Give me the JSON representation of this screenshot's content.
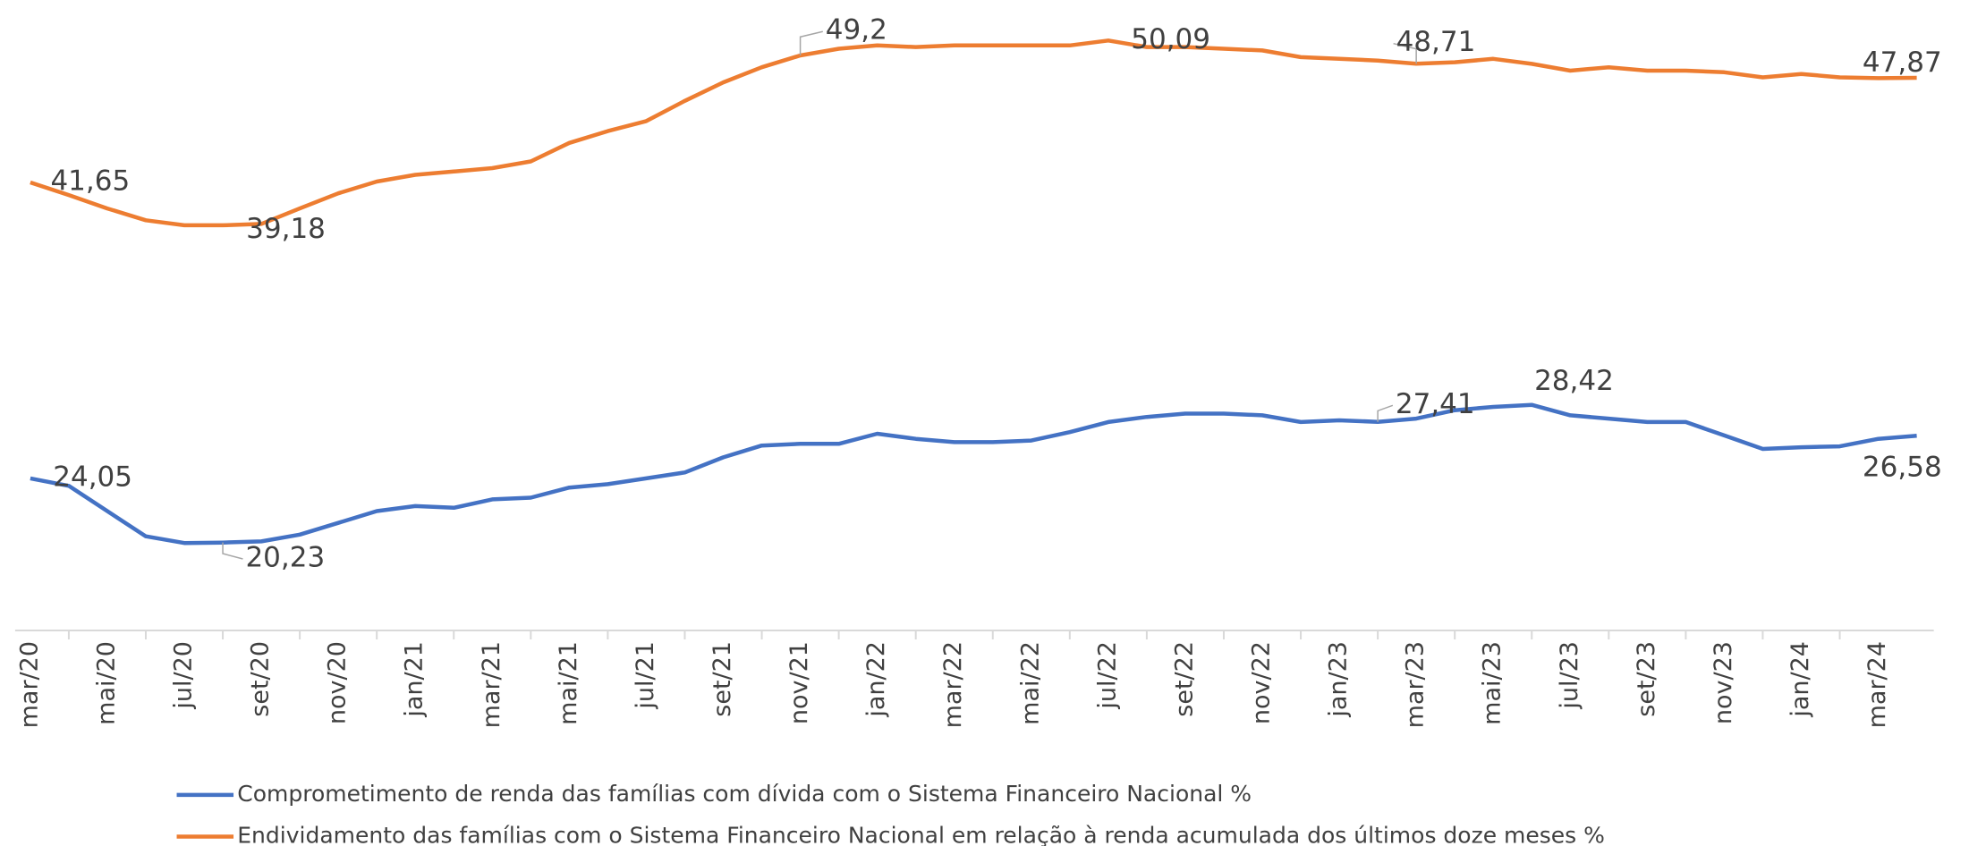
{
  "chart_data": {
    "type": "line",
    "categories": [
      "mar/20",
      null,
      "mai/20",
      null,
      "jul/20",
      null,
      "set/20",
      null,
      "nov/20",
      null,
      "jan/21",
      null,
      "mar/21",
      null,
      "mai/21",
      null,
      "jul/21",
      null,
      "set/21",
      null,
      "nov/21",
      null,
      "jan/22",
      null,
      "mar/22",
      null,
      "mai/22",
      null,
      "jul/22",
      null,
      "set/22",
      null,
      "nov/22",
      null,
      "jan/23",
      null,
      "mar/23",
      null,
      "mai/23",
      null,
      "jul/23",
      null,
      "set/23",
      null,
      "nov/23",
      null,
      "jan/24",
      null,
      "mar/24",
      null
    ],
    "series": [
      {
        "name": "Comprometimento de renda das famílias com dívida com o Sistema Financeiro Nacional  %",
        "color": "#4472c4",
        "values": [
          24.05,
          23.6,
          22.1,
          20.6,
          20.2,
          20.23,
          20.3,
          20.7,
          21.4,
          22.1,
          22.4,
          22.3,
          22.8,
          22.9,
          23.5,
          23.7,
          24.05,
          24.4,
          25.3,
          26.0,
          26.1,
          26.1,
          26.7,
          26.4,
          26.2,
          26.2,
          26.3,
          26.8,
          27.4,
          27.7,
          27.9,
          27.9,
          27.8,
          27.4,
          27.5,
          27.41,
          27.6,
          28.1,
          28.3,
          28.42,
          27.8,
          27.6,
          27.4,
          27.4,
          26.6,
          25.8,
          25.9,
          25.95,
          26.4,
          26.58
        ],
        "value_labels": [
          "24,05",
          null,
          null,
          null,
          null,
          "20,23",
          null,
          null,
          null,
          null,
          null,
          null,
          null,
          null,
          null,
          null,
          null,
          null,
          null,
          null,
          null,
          null,
          null,
          null,
          null,
          null,
          null,
          null,
          null,
          null,
          null,
          null,
          null,
          null,
          null,
          "27,41",
          null,
          null,
          null,
          "28,42",
          null,
          null,
          null,
          null,
          null,
          null,
          null,
          null,
          null,
          "26,58"
        ]
      },
      {
        "name": "Endividamento das famílias com o Sistema Financeiro Nacional em relação à renda acumulada dos últimos doze meses %",
        "color": "#ed7d31",
        "values": [
          41.65,
          40.9,
          40.1,
          39.4,
          39.1,
          39.1,
          39.18,
          40.1,
          41.0,
          41.7,
          42.1,
          42.3,
          42.5,
          42.9,
          44.0,
          44.7,
          45.3,
          46.5,
          47.6,
          48.5,
          49.2,
          49.6,
          49.8,
          49.7,
          49.8,
          49.8,
          49.8,
          49.8,
          50.09,
          49.7,
          49.7,
          49.6,
          49.5,
          49.1,
          49.0,
          48.9,
          48.71,
          48.8,
          49.0,
          48.7,
          48.3,
          48.5,
          48.3,
          48.3,
          48.2,
          47.9,
          48.1,
          47.9,
          47.85,
          47.87
        ],
        "value_labels": [
          "41,65",
          null,
          null,
          null,
          null,
          null,
          "39,18",
          null,
          null,
          null,
          null,
          null,
          null,
          null,
          null,
          null,
          null,
          null,
          null,
          null,
          "49,2",
          null,
          null,
          null,
          null,
          null,
          null,
          null,
          "50,09",
          null,
          null,
          null,
          null,
          null,
          null,
          null,
          "48,71",
          null,
          null,
          null,
          null,
          null,
          null,
          null,
          null,
          null,
          null,
          null,
          null,
          "47,87"
        ]
      }
    ],
    "ylim": [
      15,
      52.5
    ]
  }
}
